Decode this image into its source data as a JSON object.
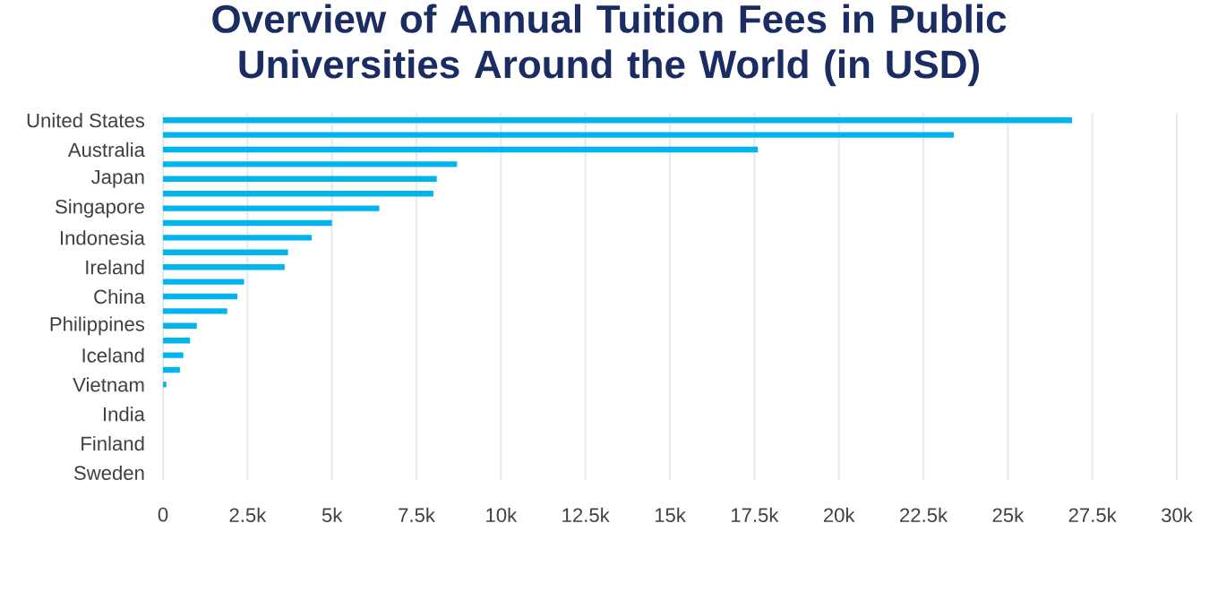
{
  "chart_data": {
    "type": "bar",
    "orientation": "horizontal",
    "title": "Overview of Annual Tuition Fees in Public Universities Around the World (in USD)",
    "categories": [
      "United States",
      null,
      "Australia",
      null,
      "Japan",
      null,
      "Singapore",
      null,
      "Indonesia",
      null,
      "Ireland",
      null,
      "China",
      null,
      "Philippines",
      null,
      "Iceland",
      null,
      "Vietnam",
      null,
      "India",
      null,
      "Finland",
      null,
      "Sweden"
    ],
    "values": [
      26900,
      23400,
      17600,
      8700,
      8100,
      8000,
      6400,
      5000,
      4400,
      3700,
      3600,
      2400,
      2200,
      1900,
      1000,
      800,
      600,
      500,
      100,
      0,
      0,
      0,
      0,
      0,
      0
    ],
    "color": "#00b4f0",
    "xlim": [
      0,
      30000
    ],
    "xticks": [
      0,
      {
        "value": 2500,
        "label": "2.5k"
      },
      {
        "value": 5000,
        "label": "5k"
      },
      {
        "value": 7500,
        "label": "7.5k"
      },
      {
        "value": 10000,
        "label": "10k"
      },
      {
        "value": 12500,
        "label": "12.5k"
      },
      {
        "value": 15000,
        "label": "15k"
      },
      {
        "value": 17500,
        "label": "17.5k"
      },
      {
        "value": 20000,
        "label": "20k"
      },
      {
        "value": 22500,
        "label": "22.5k"
      },
      {
        "value": 25000,
        "label": "25k"
      },
      {
        "value": 27500,
        "label": "27.5k"
      },
      {
        "value": 30000,
        "label": "30k"
      }
    ],
    "grid": "x"
  }
}
